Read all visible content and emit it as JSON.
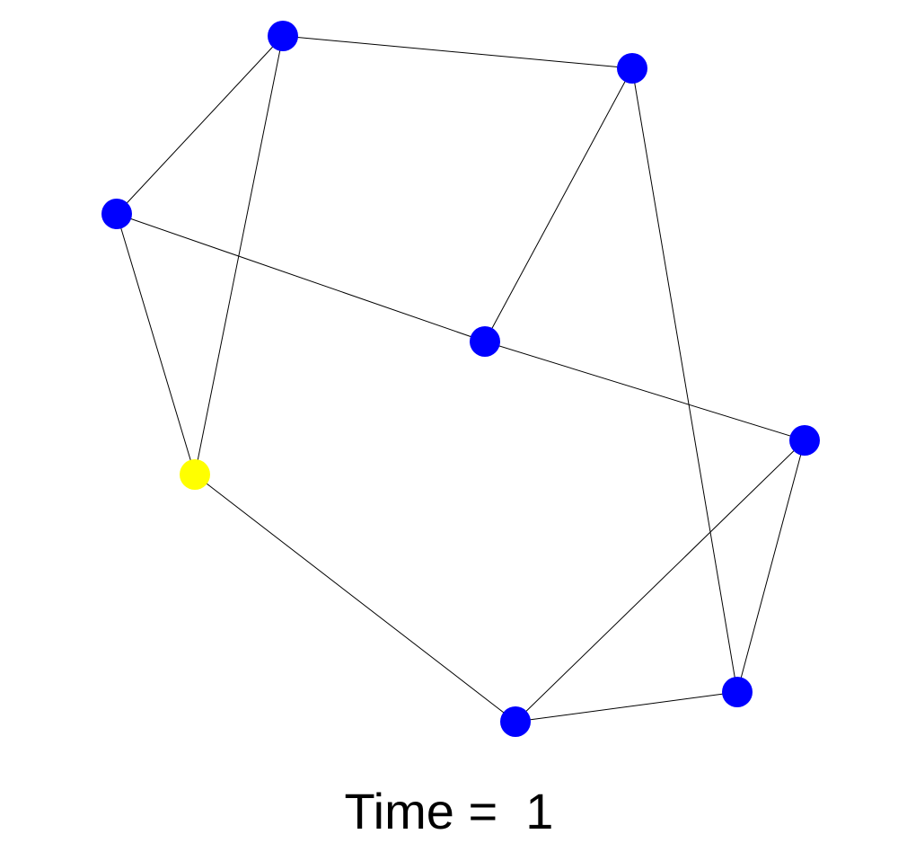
{
  "caption": {
    "prefix": "Time = ",
    "value": "1"
  },
  "colors": {
    "default_node": "#0000ff",
    "active_node": "#ffff00",
    "edge": "#000000"
  },
  "graph": {
    "node_count": 8,
    "nodes": [
      {
        "id": "n1",
        "state": "default"
      },
      {
        "id": "n2",
        "state": "default"
      },
      {
        "id": "n3",
        "state": "default"
      },
      {
        "id": "n4",
        "state": "default"
      },
      {
        "id": "n5",
        "state": "default"
      },
      {
        "id": "n6",
        "state": "default"
      },
      {
        "id": "n7",
        "state": "active"
      },
      {
        "id": "n8",
        "state": "default"
      }
    ],
    "edges": [
      [
        "n1",
        "n2"
      ],
      [
        "n1",
        "n3"
      ],
      [
        "n1",
        "n7"
      ],
      [
        "n2",
        "n4"
      ],
      [
        "n2",
        "n6"
      ],
      [
        "n3",
        "n4"
      ],
      [
        "n3",
        "n7"
      ],
      [
        "n4",
        "n5"
      ],
      [
        "n5",
        "n6"
      ],
      [
        "n5",
        "n8"
      ],
      [
        "n6",
        "n8"
      ],
      [
        "n7",
        "n8"
      ]
    ]
  }
}
